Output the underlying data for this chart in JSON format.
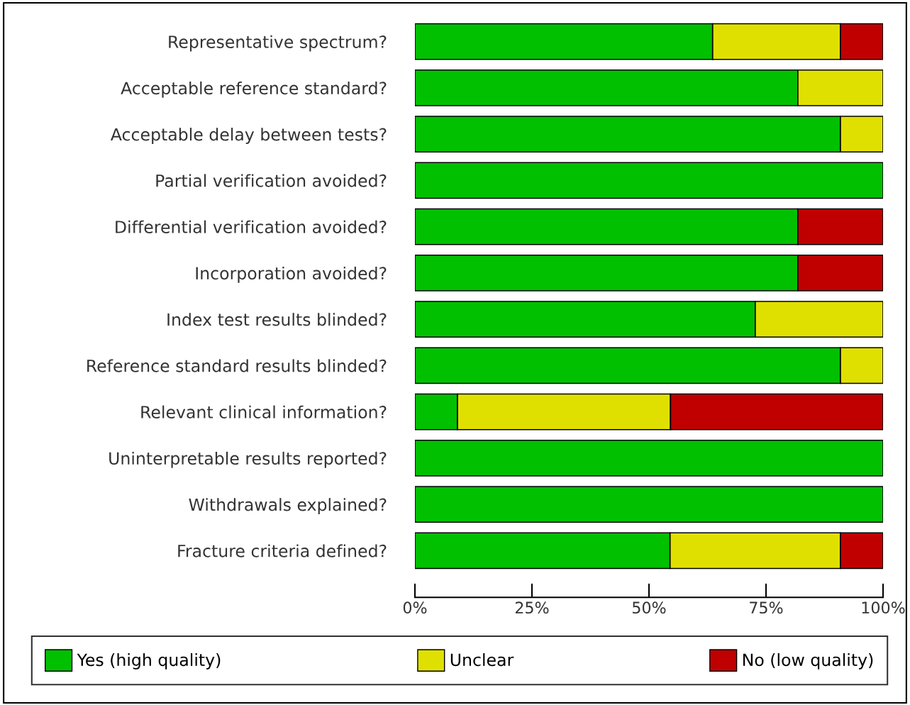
{
  "chart_data": {
    "type": "bar",
    "orientation": "horizontal",
    "stacked": true,
    "categories": [
      "Representative spectrum?",
      "Acceptable reference standard?",
      "Acceptable delay between tests?",
      "Partial verification avoided?",
      "Differential verification avoided?",
      "Incorporation avoided?",
      "Index test results blinded?",
      "Reference standard results blinded?",
      "Relevant clinical information?",
      "Uninterpretable results reported?",
      "Withdrawals explained?",
      "Fracture criteria defined?"
    ],
    "series": [
      {
        "name": "Yes (high quality)",
        "color": "#00c000",
        "values": [
          63.6,
          81.8,
          90.9,
          100,
          81.8,
          81.8,
          72.7,
          90.9,
          9.1,
          100,
          100,
          54.5
        ]
      },
      {
        "name": "Unclear",
        "color": "#e0e000",
        "values": [
          27.3,
          18.2,
          9.1,
          null,
          null,
          null,
          27.3,
          9.1,
          45.5,
          null,
          null,
          36.4
        ]
      },
      {
        "name": "No (low quality)",
        "color": "#c00000",
        "values": [
          9.1,
          null,
          null,
          null,
          18.2,
          18.2,
          null,
          null,
          45.4,
          null,
          null,
          9.1
        ]
      }
    ],
    "xlim": [
      0,
      100
    ],
    "xticks": [
      {
        "value": 0,
        "label": "0%"
      },
      {
        "value": 25,
        "label": "25%"
      },
      {
        "value": 50,
        "label": "50%"
      },
      {
        "value": 75,
        "label": "75%"
      },
      {
        "value": 100,
        "label": "100%"
      }
    ],
    "grid": false,
    "legend": "bottom"
  }
}
